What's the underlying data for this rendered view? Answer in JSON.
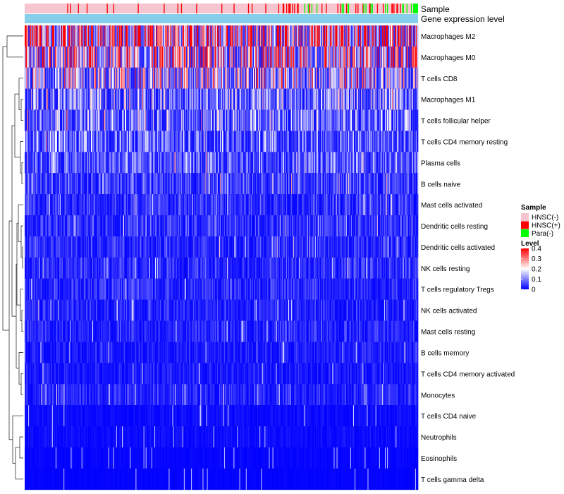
{
  "chart_data": {
    "type": "heatmap",
    "title": "",
    "annotation_tracks": [
      "Sample",
      "Gene expression level"
    ],
    "annotation_colors": {
      "HNSC(-)": "#f7c5cf",
      "HNSC(+)": "#ff0000",
      "Para(-)": "#00ff00",
      "Gene expression level": "#87ceeb"
    },
    "rows": [
      {
        "label": "Macrophages M2",
        "mean": 0.3
      },
      {
        "label": "Macrophages M0",
        "mean": 0.2
      },
      {
        "label": "T cells CD8",
        "mean": 0.15
      },
      {
        "label": "Macrophages M1",
        "mean": 0.1
      },
      {
        "label": "T cells follicular helper",
        "mean": 0.09
      },
      {
        "label": "T cells CD4 memory resting",
        "mean": 0.08
      },
      {
        "label": "Plasma cells",
        "mean": 0.07
      },
      {
        "label": "B cells naive",
        "mean": 0.05
      },
      {
        "label": "Mast cells activated",
        "mean": 0.04
      },
      {
        "label": "Dendritic cells resting",
        "mean": 0.04
      },
      {
        "label": "Dendritic cells activated",
        "mean": 0.035
      },
      {
        "label": "NK cells resting",
        "mean": 0.035
      },
      {
        "label": "T cells regulatory  Tregs",
        "mean": 0.035
      },
      {
        "label": "NK cells activated",
        "mean": 0.03
      },
      {
        "label": "Mast cells resting",
        "mean": 0.03
      },
      {
        "label": "B cells memory",
        "mean": 0.025
      },
      {
        "label": "T cells CD4 memory activated",
        "mean": 0.02
      },
      {
        "label": "Monocytes",
        "mean": 0.03
      },
      {
        "label": "T cells CD4 naive",
        "mean": 0.01
      },
      {
        "label": "Neutrophils",
        "mean": 0.01
      },
      {
        "label": "Eosinophils",
        "mean": 0.005
      },
      {
        "label": "T cells gamma delta",
        "mean": 0.003
      }
    ],
    "n_samples": 546,
    "sample_composition": {
      "HNSC(-)": 0.85,
      "HNSC(+)": 0.1,
      "Para(-)": 0.05
    },
    "legend": {
      "sample_title": "Sample",
      "sample_entries": [
        "HNSC(-)",
        "HNSC(+)",
        "Para(-)"
      ],
      "level_title": "Level",
      "level_ticks": [
        "0.4",
        "0.3",
        "0.2",
        "0.1",
        "0"
      ],
      "level_range": [
        0,
        0.4
      ],
      "level_colors": {
        "low": "#0000ff",
        "mid": "#ffffff",
        "high": "#ff0000"
      }
    },
    "dendrogram": "hierarchical clustering of rows (left side)"
  }
}
